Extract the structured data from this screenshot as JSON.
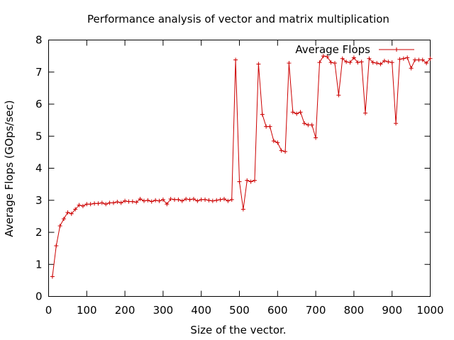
{
  "chart_data": {
    "type": "line",
    "title": "Performance analysis of vector and matrix multiplication",
    "xlabel": "Size of the vector.",
    "ylabel": "Average Flops (GOps/sec)",
    "xlim": [
      0,
      1000
    ],
    "ylim": [
      0,
      8
    ],
    "xticks": [
      "0",
      "100",
      "200",
      "300",
      "400",
      "500",
      "600",
      "700",
      "800",
      "900",
      "1000"
    ],
    "yticks": [
      "0",
      "1",
      "2",
      "3",
      "4",
      "5",
      "6",
      "7",
      "8"
    ],
    "grid": false,
    "legend_position": "top-right",
    "series": [
      {
        "name": "Average Flops",
        "color": "#cc0000",
        "marker": "plus",
        "x": [
          10,
          20,
          30,
          40,
          50,
          60,
          70,
          80,
          90,
          100,
          110,
          120,
          130,
          140,
          150,
          160,
          170,
          180,
          190,
          200,
          210,
          220,
          230,
          240,
          250,
          260,
          270,
          280,
          290,
          300,
          310,
          320,
          330,
          340,
          350,
          360,
          370,
          380,
          390,
          400,
          410,
          420,
          430,
          440,
          450,
          460,
          470,
          480,
          490,
          500,
          510,
          520,
          530,
          540,
          550,
          560,
          570,
          580,
          590,
          600,
          610,
          620,
          630,
          640,
          650,
          660,
          670,
          680,
          690,
          700,
          710,
          720,
          730,
          740,
          750,
          760,
          770,
          780,
          790,
          800,
          810,
          820,
          830,
          840,
          850,
          860,
          870,
          880,
          890,
          900,
          910,
          920,
          930,
          940,
          950,
          960,
          970,
          980,
          990,
          1000
        ],
        "y": [
          0.62,
          1.58,
          2.2,
          2.42,
          2.62,
          2.58,
          2.72,
          2.85,
          2.82,
          2.88,
          2.88,
          2.9,
          2.9,
          2.92,
          2.88,
          2.92,
          2.92,
          2.95,
          2.92,
          2.98,
          2.96,
          2.96,
          2.94,
          3.04,
          2.98,
          3.0,
          2.96,
          3.0,
          2.98,
          3.02,
          2.88,
          3.04,
          3.02,
          3.02,
          2.98,
          3.04,
          3.02,
          3.04,
          2.98,
          3.02,
          3.02,
          3.0,
          2.98,
          3.0,
          3.02,
          3.04,
          2.98,
          3.02,
          7.38,
          3.58,
          2.72,
          3.62,
          3.58,
          3.62,
          7.25,
          5.68,
          5.3,
          5.3,
          4.85,
          4.8,
          4.55,
          4.52,
          7.28,
          5.75,
          5.7,
          5.75,
          5.4,
          5.35,
          5.35,
          4.95,
          7.3,
          7.5,
          7.48,
          7.3,
          7.28,
          6.28,
          7.42,
          7.32,
          7.3,
          7.45,
          7.3,
          7.32,
          5.72,
          7.42,
          7.3,
          7.28,
          7.25,
          7.35,
          7.32,
          7.3,
          5.4,
          7.4,
          7.42,
          7.45,
          7.12,
          7.38,
          7.38,
          7.38,
          7.28,
          7.42
        ]
      }
    ]
  }
}
